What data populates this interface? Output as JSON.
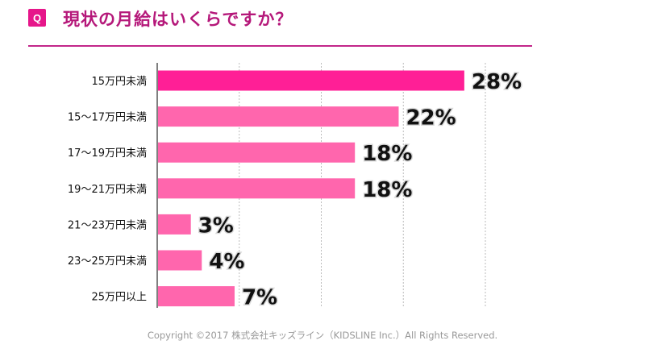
{
  "header": {
    "badge": "Q",
    "title": "現状の月給はいくらですか？"
  },
  "chart_data": {
    "type": "bar",
    "orientation": "horizontal",
    "title": "現状の月給はいくらですか？",
    "categories": [
      "15万円未満",
      "15〜17万円未満",
      "17〜19万円未満",
      "19〜21万円未満",
      "21〜23万円未満",
      "23〜25万円未満",
      "25万円以上"
    ],
    "values": [
      28,
      22,
      18,
      18,
      3,
      4,
      7
    ],
    "labels": [
      "28%",
      "22%",
      "18%",
      "18%",
      "3%",
      "4%",
      "7%"
    ],
    "xlim": [
      0,
      30
    ],
    "grid": true,
    "colors": {
      "highlight": "#ff1f96",
      "bar": "#ff66ad"
    }
  },
  "footer": {
    "copyright": "Copyright ©2017 株式会社キッズライン（KIDSLINE Inc.）All Rights Reserved."
  }
}
